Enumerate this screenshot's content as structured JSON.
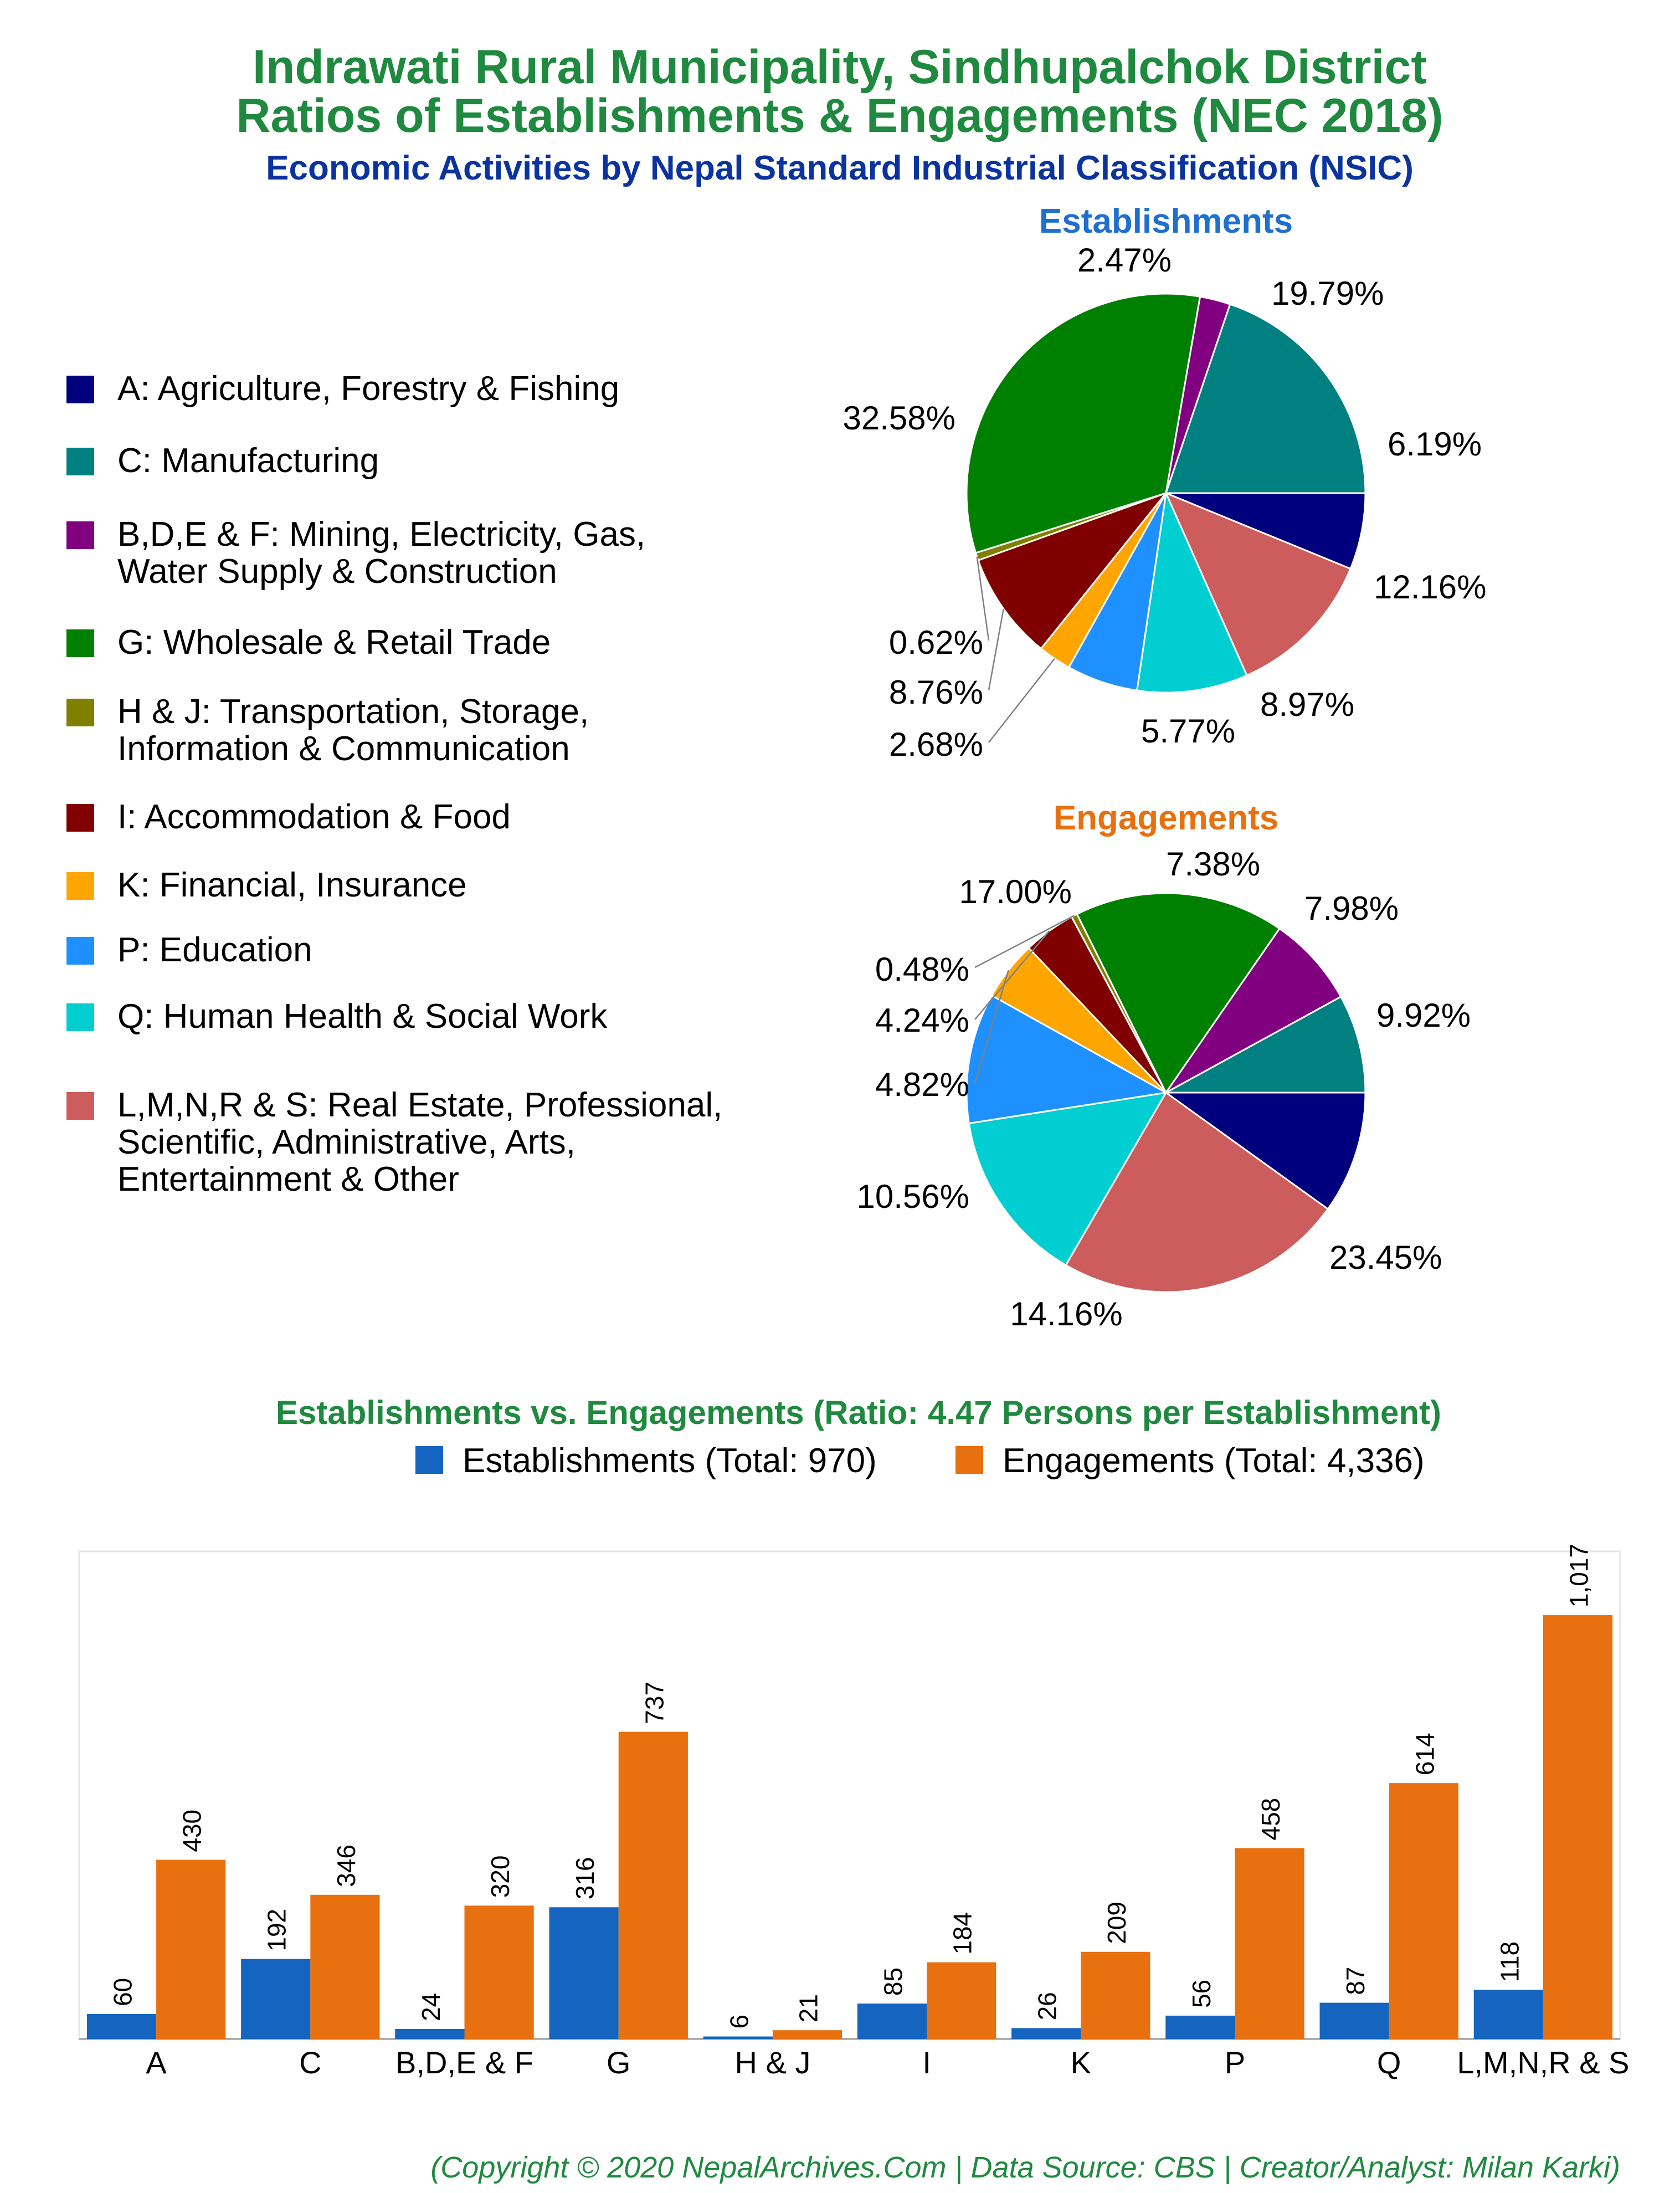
{
  "header": {
    "title_line1": "Indrawati Rural Municipality, Sindhupalchok District",
    "title_line2": "Ratios of Establishments & Engagements (NEC 2018)",
    "subtitle": "Economic Activities by Nepal Standard Industrial Classification (NSIC)"
  },
  "colors": {
    "A": "#00007f",
    "C": "#008080",
    "BDEF": "#800080",
    "G": "#008000",
    "HJ": "#808000",
    "I": "#800000",
    "K": "#ffa500",
    "P": "#1e90ff",
    "Q": "#00ced1",
    "LMNRS": "#cd5c5c",
    "establishments": "#1565c0",
    "engagements": "#e8700e"
  },
  "legend": {
    "items": [
      {
        "key": "A",
        "lines": [
          "A: Agriculture, Forestry & Fishing"
        ]
      },
      {
        "key": "C",
        "lines": [
          "C: Manufacturing"
        ]
      },
      {
        "key": "BDEF",
        "lines": [
          "B,D,E & F: Mining, Electricity, Gas,",
          "Water Supply & Construction"
        ]
      },
      {
        "key": "G",
        "lines": [
          "G: Wholesale & Retail Trade"
        ]
      },
      {
        "key": "HJ",
        "lines": [
          "H & J: Transportation, Storage,",
          "Information & Communication"
        ]
      },
      {
        "key": "I",
        "lines": [
          "I: Accommodation & Food"
        ]
      },
      {
        "key": "K",
        "lines": [
          "K: Financial, Insurance"
        ]
      },
      {
        "key": "P",
        "lines": [
          "P: Education"
        ]
      },
      {
        "key": "Q",
        "lines": [
          "Q: Human Health & Social Work"
        ]
      },
      {
        "key": "LMNRS",
        "lines": [
          "L,M,N,R & S: Real Estate, Professional,",
          "Scientific, Administrative, Arts,",
          "Entertainment & Other"
        ]
      }
    ]
  },
  "bar_chart": {
    "title": "Establishments vs. Engagements (Ratio: 4.47 Persons per Establishment)",
    "legend_establishments": "Establishments (Total: 970)",
    "legend_engagements": "Engagements (Total: 4,336)"
  },
  "footer": {
    "copyright": "(Copyright © 2020 NepalArchives.Com | Data Source: CBS | Creator/Analyst: Milan Karki)"
  },
  "chart_data": [
    {
      "type": "pie",
      "title": "Establishments",
      "slices": [
        {
          "key": "A",
          "value": 6.19,
          "label": "6.19%"
        },
        {
          "key": "LMNRS",
          "value": 12.16,
          "label": "12.16%"
        },
        {
          "key": "Q",
          "value": 8.97,
          "label": "8.97%"
        },
        {
          "key": "P",
          "value": 5.77,
          "label": "5.77%"
        },
        {
          "key": "K",
          "value": 2.68,
          "label": "2.68%"
        },
        {
          "key": "I",
          "value": 8.76,
          "label": "8.76%"
        },
        {
          "key": "HJ",
          "value": 0.62,
          "label": "0.62%"
        },
        {
          "key": "G",
          "value": 32.58,
          "label": "32.58%"
        },
        {
          "key": "BDEF",
          "value": 2.47,
          "label": "2.47%"
        },
        {
          "key": "C",
          "value": 19.79,
          "label": "19.79%"
        }
      ]
    },
    {
      "type": "pie",
      "title": "Engagements",
      "slices": [
        {
          "key": "A",
          "value": 9.92,
          "label": "9.92%"
        },
        {
          "key": "LMNRS",
          "value": 23.45,
          "label": "23.45%"
        },
        {
          "key": "Q",
          "value": 14.16,
          "label": "14.16%"
        },
        {
          "key": "P",
          "value": 10.56,
          "label": "10.56%"
        },
        {
          "key": "K",
          "value": 4.82,
          "label": "4.82%"
        },
        {
          "key": "I",
          "value": 4.24,
          "label": "4.24%"
        },
        {
          "key": "HJ",
          "value": 0.48,
          "label": "0.48%"
        },
        {
          "key": "G",
          "value": 17.0,
          "label": "17.00%"
        },
        {
          "key": "BDEF",
          "value": 7.38,
          "label": "7.38%"
        },
        {
          "key": "C",
          "value": 7.98,
          "label": "7.98%"
        }
      ]
    },
    {
      "type": "bar",
      "categories": [
        "A",
        "C",
        "B,D,E & F",
        "G",
        "H & J",
        "I",
        "K",
        "P",
        "Q",
        "L,M,N,R & S"
      ],
      "series": [
        {
          "name": "Establishments",
          "values": [
            60,
            192,
            24,
            316,
            6,
            85,
            26,
            56,
            87,
            118
          ],
          "labels": [
            "60",
            "192",
            "24",
            "316",
            "6",
            "85",
            "26",
            "56",
            "87",
            "118"
          ]
        },
        {
          "name": "Engagements",
          "values": [
            430,
            346,
            320,
            737,
            21,
            184,
            209,
            458,
            614,
            1017
          ],
          "labels": [
            "430",
            "346",
            "320",
            "737",
            "21",
            "184",
            "209",
            "458",
            "614",
            "1,017"
          ]
        }
      ],
      "ylim": [
        0,
        1170
      ],
      "grid": false
    }
  ]
}
